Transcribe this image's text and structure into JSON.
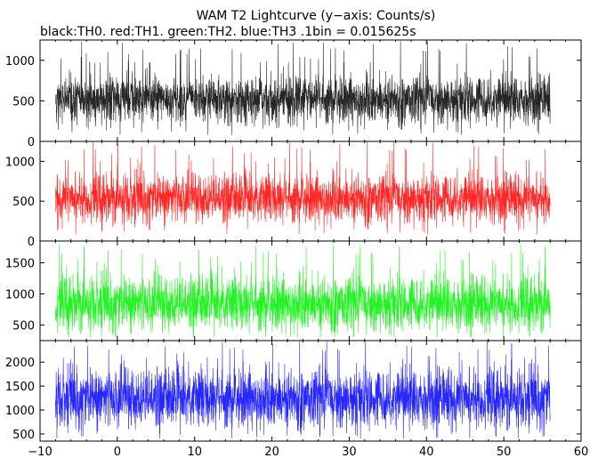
{
  "chart_data": {
    "type": "line",
    "title": "WAM T2 Lightcurve (y−axis: Counts/s)",
    "subtitle": "black:TH0. red:TH1. green:TH2. blue:TH3 .1bin = 0.015625s",
    "x_ticks": [
      "−10",
      "0",
      "10",
      "20",
      "30",
      "40",
      "50",
      "60"
    ],
    "x_tick_values": [
      -10,
      0,
      10,
      20,
      30,
      40,
      50,
      60
    ],
    "xlim": [
      -10,
      60
    ],
    "data_x_range": [
      -8,
      56
    ],
    "bin_size_s": 0.015625,
    "grid": false,
    "panels": [
      {
        "name": "TH0",
        "color": "#000000",
        "ylim": [
          0,
          1250
        ],
        "y_ticks": [
          "0",
          "500",
          "1000"
        ],
        "y_tick_values": [
          0,
          500,
          1000
        ],
        "mean": 520,
        "sigma": 140,
        "spike_max": 1240,
        "floor_min": 80
      },
      {
        "name": "TH1",
        "color": "#ff0000",
        "ylim": [
          0,
          1250
        ],
        "y_ticks": [
          "0",
          "500",
          "1000"
        ],
        "y_tick_values": [
          0,
          500,
          1000
        ],
        "mean": 540,
        "sigma": 145,
        "spike_max": 1260,
        "floor_min": 80
      },
      {
        "name": "TH2",
        "color": "#00ee00",
        "ylim": [
          250,
          1850
        ],
        "y_ticks": [
          "500",
          "1000",
          "1500"
        ],
        "y_tick_values": [
          500,
          1000,
          1500
        ],
        "mean": 850,
        "sigma": 210,
        "spike_max": 1800,
        "floor_min": 300
      },
      {
        "name": "TH3",
        "color": "#0000ff",
        "ylim": [
          350,
          2450
        ],
        "y_ticks": [
          "500",
          "1000",
          "1500",
          "2000"
        ],
        "y_tick_values": [
          500,
          1000,
          1500,
          2000
        ],
        "mean": 1250,
        "sigma": 290,
        "spike_max": 2450,
        "floor_min": 400
      }
    ]
  }
}
